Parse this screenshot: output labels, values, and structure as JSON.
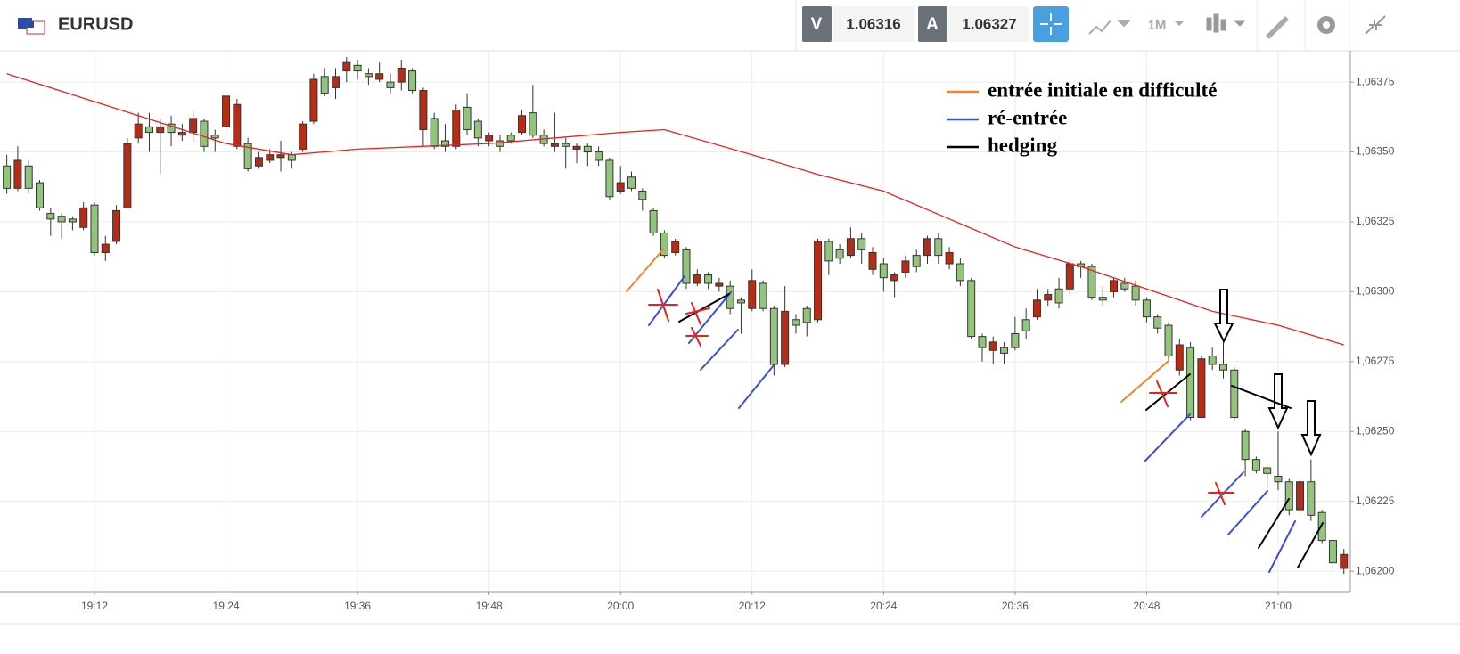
{
  "header": {
    "symbol": "EURUSD",
    "bid_label": "V",
    "bid": "1.06316",
    "ask_label": "A",
    "ask": "1.06327",
    "timeframe": "1M"
  },
  "chart_data": {
    "type": "candlestick",
    "up_color": "#93c47d",
    "down_color": "#b52d17",
    "x": [
      1144,
      1145,
      1146,
      1147,
      1148,
      1149,
      1150,
      1151,
      1152,
      1153,
      1154,
      1155,
      1156,
      1157,
      1158,
      1159,
      1160,
      1161,
      1162,
      1163,
      1164,
      1165,
      1166,
      1167,
      1168,
      1169,
      1170,
      1171,
      1172,
      1173,
      1174,
      1175,
      1176,
      1177,
      1178,
      1179,
      1180,
      1181,
      1182,
      1183,
      1184,
      1185,
      1186,
      1187,
      1188,
      1189,
      1190,
      1191,
      1192,
      1193,
      1194,
      1195,
      1196,
      1197,
      1198,
      1199,
      1200,
      1201,
      1202,
      1203,
      1204,
      1205,
      1206,
      1207,
      1208,
      1209,
      1210,
      1211,
      1212,
      1213,
      1214,
      1215,
      1216,
      1217,
      1218,
      1219,
      1220,
      1221,
      1222,
      1223,
      1224,
      1225,
      1226,
      1227,
      1228,
      1229,
      1230,
      1231,
      1232,
      1233,
      1234,
      1235,
      1236,
      1237,
      1238,
      1239,
      1240,
      1241,
      1242,
      1243,
      1244,
      1245,
      1246,
      1247,
      1248,
      1249,
      1250,
      1251,
      1252,
      1253,
      1254,
      1255,
      1256,
      1257,
      1258,
      1259,
      1260,
      1261,
      1262,
      1263,
      1264,
      1265,
      1266
    ],
    "open": [
      1.06337,
      1.06347,
      1.06337,
      1.0633,
      1.06326,
      1.06325,
      1.06325,
      1.0633,
      1.06314,
      1.06317,
      1.06329,
      1.06353,
      1.0636,
      1.06357,
      1.06359,
      1.06357,
      1.06357,
      1.06362,
      1.06352,
      1.06355,
      1.0637,
      1.06367,
      1.06344,
      1.06348,
      1.06349,
      1.06349,
      1.06347,
      1.0636,
      1.06376,
      1.06371,
      1.06377,
      1.06382,
      1.06379,
      1.06377,
      1.06378,
      1.06373,
      1.0638,
      1.06372,
      1.06372,
      1.06352,
      1.06352,
      1.06365,
      1.06358,
      1.06355,
      1.06356,
      1.06352,
      1.06354,
      1.06363,
      1.06356,
      1.06353,
      1.06353,
      1.06352,
      1.06352,
      1.0635,
      1.06347,
      1.06334,
      1.06339,
      1.06337,
      1.06333,
      1.06321,
      1.06313,
      1.06318,
      1.06303,
      1.06306,
      1.06303,
      1.06303,
      1.06294,
      1.06296,
      1.06304,
      1.06294,
      1.06274,
      1.06293,
      1.06288,
      1.06289,
      1.06318,
      1.06311,
      1.06312,
      1.06319,
      1.06315,
      1.06314,
      1.06305,
      1.06306,
      1.06311,
      1.06309,
      1.06319,
      1.06313,
      1.06314,
      1.06304,
      1.06284,
      1.0628,
      1.06282,
      1.06278,
      1.0628,
      1.06286,
      1.06297,
      1.06299,
      1.06296,
      1.0631,
      1.06309,
      1.06298,
      1.06297,
      1.06304,
      1.06301,
      1.06297,
      1.06291,
      1.06287,
      1.06277,
      1.06281,
      1.06255,
      1.06276,
      1.06274,
      1.06272,
      1.06255,
      1.0624,
      1.06236,
      1.06235,
      1.06232,
      1.06222,
      1.06232,
      1.0622,
      1.06211,
      1.06203,
      1.06206
    ],
    "high": [
      1.06349,
      1.06352,
      1.06347,
      1.0634,
      1.0633,
      1.06328,
      1.06327,
      1.06332,
      1.06332,
      1.0632,
      1.06331,
      1.06355,
      1.06364,
      1.06364,
      1.06362,
      1.06363,
      1.0636,
      1.06365,
      1.06362,
      1.06358,
      1.06371,
      1.06369,
      1.06355,
      1.0635,
      1.06351,
      1.06354,
      1.0635,
      1.06361,
      1.06378,
      1.0638,
      1.0638,
      1.06384,
      1.06383,
      1.0638,
      1.06382,
      1.06378,
      1.06383,
      1.0638,
      1.06373,
      1.06364,
      1.0636,
      1.06367,
      1.06371,
      1.06362,
      1.06357,
      1.06356,
      1.06357,
      1.06365,
      1.06374,
      1.06358,
      1.06364,
      1.06355,
      1.06353,
      1.06353,
      1.06352,
      1.06348,
      1.06345,
      1.06343,
      1.06337,
      1.0633,
      1.06322,
      1.06319,
      1.06316,
      1.06308,
      1.06307,
      1.06305,
      1.06304,
      1.06298,
      1.06308,
      1.06304,
      1.06295,
      1.06302,
      1.06292,
      1.06295,
      1.06319,
      1.06319,
      1.06317,
      1.06323,
      1.06321,
      1.06316,
      1.06312,
      1.06307,
      1.06313,
      1.06315,
      1.0632,
      1.06321,
      1.06316,
      1.06312,
      1.06305,
      1.06285,
      1.06284,
      1.06282,
      1.06291,
      1.06294,
      1.06301,
      1.06301,
      1.06305,
      1.06312,
      1.06311,
      1.0631,
      1.06302,
      1.06305,
      1.06305,
      1.06304,
      1.06298,
      1.06292,
      1.06289,
      1.06283,
      1.06282,
      1.06277,
      1.0628,
      1.06283,
      1.06273,
      1.06251,
      1.06241,
      1.06238,
      1.0625,
      1.06233,
      1.06233,
      1.0624,
      1.06222,
      1.06212,
      1.06208
    ],
    "low": [
      1.06335,
      1.06336,
      1.06335,
      1.06329,
      1.0632,
      1.06319,
      1.06322,
      1.06322,
      1.06313,
      1.06311,
      1.06317,
      1.0633,
      1.06353,
      1.0635,
      1.06342,
      1.06352,
      1.06354,
      1.06354,
      1.0635,
      1.0635,
      1.06356,
      1.06351,
      1.06343,
      1.06344,
      1.06346,
      1.06343,
      1.06344,
      1.0635,
      1.0636,
      1.0637,
      1.06369,
      1.06375,
      1.06376,
      1.06374,
      1.06375,
      1.06371,
      1.06372,
      1.06371,
      1.06352,
      1.06351,
      1.0635,
      1.06351,
      1.06356,
      1.06352,
      1.06352,
      1.0635,
      1.06353,
      1.06356,
      1.06355,
      1.06352,
      1.0635,
      1.06344,
      1.06346,
      1.06345,
      1.06345,
      1.06333,
      1.06335,
      1.06336,
      1.06329,
      1.0632,
      1.06312,
      1.06313,
      1.06301,
      1.06302,
      1.06301,
      1.063,
      1.06292,
      1.06285,
      1.06293,
      1.06293,
      1.0627,
      1.06273,
      1.06285,
      1.06284,
      1.06289,
      1.06306,
      1.0631,
      1.06312,
      1.0631,
      1.06306,
      1.063,
      1.06298,
      1.06305,
      1.06307,
      1.0631,
      1.0631,
      1.06308,
      1.06302,
      1.06283,
      1.06275,
      1.06274,
      1.06274,
      1.06279,
      1.06283,
      1.0629,
      1.06295,
      1.06294,
      1.06299,
      1.06305,
      1.06297,
      1.06295,
      1.06298,
      1.063,
      1.06295,
      1.06289,
      1.06285,
      1.06275,
      1.0627,
      1.06254,
      1.06255,
      1.06272,
      1.06269,
      1.06254,
      1.06234,
      1.06235,
      1.0623,
      1.06229,
      1.0622,
      1.0622,
      1.06218,
      1.0621,
      1.06198,
      1.06199
    ],
    "close": [
      1.06345,
      1.06337,
      1.06345,
      1.06339,
      1.06328,
      1.06327,
      1.06326,
      1.06323,
      1.06331,
      1.06314,
      1.06318,
      1.0633,
      1.06355,
      1.06359,
      1.06357,
      1.0636,
      1.06356,
      1.06357,
      1.06361,
      1.06356,
      1.06359,
      1.06352,
      1.06353,
      1.06345,
      1.06347,
      1.06348,
      1.06349,
      1.06351,
      1.06361,
      1.06377,
      1.06373,
      1.06379,
      1.06381,
      1.06378,
      1.06376,
      1.06375,
      1.06375,
      1.06379,
      1.06358,
      1.06362,
      1.06354,
      1.06352,
      1.06366,
      1.06361,
      1.06354,
      1.06354,
      1.06356,
      1.06357,
      1.06364,
      1.06356,
      1.06352,
      1.06353,
      1.06351,
      1.06352,
      1.0635,
      1.06347,
      1.06336,
      1.06341,
      1.06336,
      1.06329,
      1.06321,
      1.06314,
      1.06315,
      1.06303,
      1.06306,
      1.06302,
      1.06302,
      1.06297,
      1.06294,
      1.06303,
      1.06294,
      1.06274,
      1.0629,
      1.06294,
      1.0629,
      1.06318,
      1.06315,
      1.06313,
      1.06319,
      1.06308,
      1.0631,
      1.06304,
      1.06307,
      1.06313,
      1.06313,
      1.06319,
      1.0631,
      1.0631,
      1.06304,
      1.06284,
      1.06279,
      1.0628,
      1.06285,
      1.0629,
      1.06291,
      1.06297,
      1.06301,
      1.06301,
      1.0631,
      1.06309,
      1.06298,
      1.063,
      1.06303,
      1.06302,
      1.06297,
      1.06291,
      1.06288,
      1.06272,
      1.0628,
      1.06255,
      1.06277,
      1.06274,
      1.06272,
      1.0625,
      1.0624,
      1.06237,
      1.06234,
      1.06232,
      1.06222,
      1.06232,
      1.06221,
      1.06211,
      1.06201
    ],
    "ma": {
      "color": "#e8211d",
      "x": [
        1144,
        1152,
        1164,
        1170,
        1176,
        1188,
        1200,
        1204,
        1212,
        1218,
        1224,
        1230,
        1236,
        1242,
        1248,
        1254,
        1260,
        1266
      ],
      "values": [
        1.06378,
        1.06368,
        1.06353,
        1.06349,
        1.06351,
        1.06353,
        1.06357,
        1.06358,
        1.06349,
        1.06342,
        1.06336,
        1.06326,
        1.06316,
        1.06309,
        1.06301,
        1.06293,
        1.06288,
        1.06281
      ]
    },
    "xlim": [
      1143.38,
      1266.59
    ],
    "xticks": [
      {
        "value": 1152,
        "label": "19:12"
      },
      {
        "value": 1164,
        "label": "19:24"
      },
      {
        "value": 1176,
        "label": "19:36"
      },
      {
        "value": 1188,
        "label": "19:48"
      },
      {
        "value": 1200,
        "label": "20:00"
      },
      {
        "value": 1212,
        "label": "20:12"
      },
      {
        "value": 1224,
        "label": "20:24"
      },
      {
        "value": 1236,
        "label": "20:36"
      },
      {
        "value": 1248,
        "label": "20:48"
      },
      {
        "value": 1260,
        "label": "21:00"
      }
    ],
    "ylim": [
      1.061927,
      1.063862
    ],
    "yticks": [
      {
        "value": 1.062,
        "label": "1,06200"
      },
      {
        "value": 1.06225,
        "label": "1,06225"
      },
      {
        "value": 1.0625,
        "label": "1,06250"
      },
      {
        "value": 1.06275,
        "label": "1,06275"
      },
      {
        "value": 1.063,
        "label": "1,06300"
      },
      {
        "value": 1.06325,
        "label": "1,06325"
      },
      {
        "value": 1.0635,
        "label": "1,06350"
      },
      {
        "value": 1.06375,
        "label": "1,06375"
      }
    ],
    "grid": true,
    "legend": [
      {
        "label": "entrée initiale en difficulté",
        "color": "#f5832a"
      },
      {
        "label": "ré-entrée",
        "color": "#3b4fd8"
      },
      {
        "label": "hedging",
        "color": "#000000"
      }
    ]
  }
}
